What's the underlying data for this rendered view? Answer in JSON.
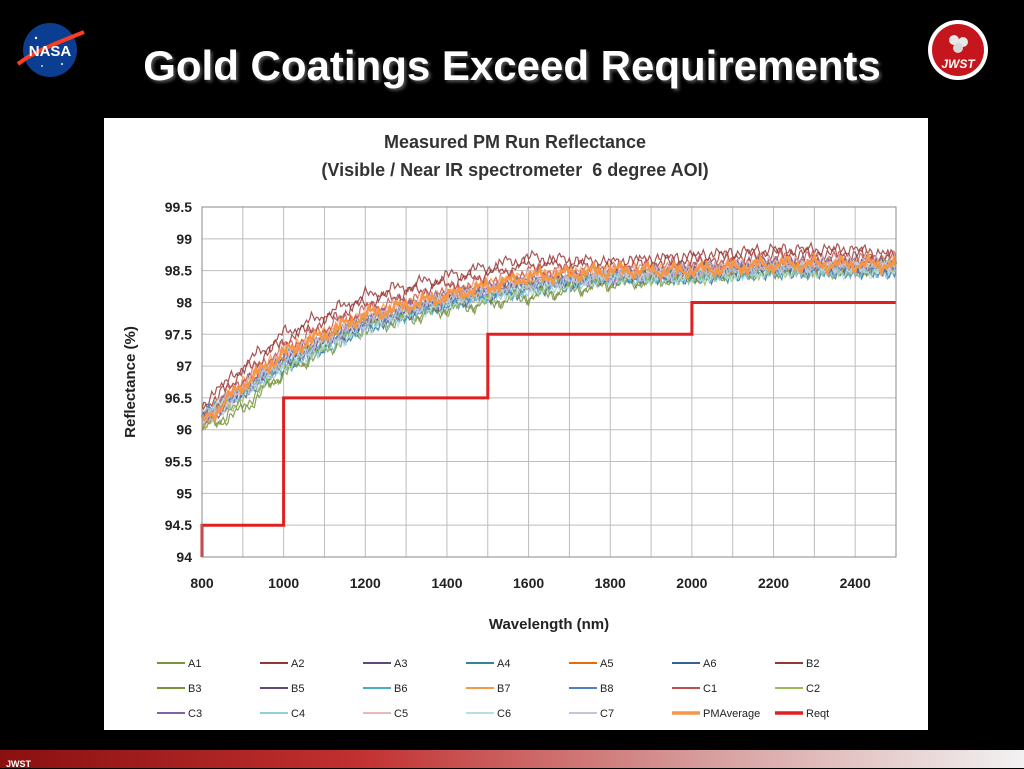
{
  "slide": {
    "title": "Gold Coatings Exceed Requirements",
    "footer": "JWST",
    "nasa_logo_text": "NASA",
    "jwst_logo_text": "JWST"
  },
  "chart_data": {
    "type": "line",
    "title": "Measured PM Run Reflectance",
    "subtitle": "(Visible / Near IR spectrometer  6 degree AOI)",
    "xlabel": "Wavelength (nm)",
    "ylabel": "Reflectance (%)",
    "xlim": [
      800,
      2500
    ],
    "ylim": [
      94,
      99.5
    ],
    "xticks": [
      800,
      1000,
      1200,
      1400,
      1600,
      1800,
      2000,
      2200,
      2400
    ],
    "xtick_labels": [
      "800",
      "1000",
      "1200",
      "1400",
      "1600",
      "1800",
      "2000",
      "2200",
      "2400"
    ],
    "yticks": [
      94,
      94.5,
      95,
      95.5,
      96,
      96.5,
      97,
      97.5,
      98,
      98.5,
      99,
      99.5
    ],
    "ytick_labels": [
      "94",
      "94.5",
      "95",
      "95.5",
      "96",
      "96.5",
      "97",
      "97.5",
      "98",
      "98.5",
      "99",
      "99.5"
    ],
    "grid": true,
    "legend_position": "bottom",
    "series": [
      {
        "name": "A1",
        "color": "#77933c",
        "x": [
          800,
          900,
          1000,
          1200,
          1400,
          1600,
          1800,
          2000,
          2200,
          2400,
          2500
        ],
        "y": [
          96.0,
          96.4,
          96.9,
          97.6,
          97.9,
          98.1,
          98.3,
          98.4,
          98.5,
          98.5,
          98.6
        ]
      },
      {
        "name": "A2",
        "color": "#943634",
        "x": [
          800,
          900,
          1000,
          1200,
          1400,
          1600,
          1800,
          2000,
          2200,
          2400,
          2500
        ],
        "y": [
          96.3,
          97.0,
          97.5,
          98.1,
          98.4,
          98.7,
          98.6,
          98.7,
          98.8,
          98.8,
          98.7
        ]
      },
      {
        "name": "A3",
        "color": "#5f497a",
        "x": [
          800,
          900,
          1000,
          1200,
          1400,
          1600,
          1800,
          2000,
          2200,
          2400,
          2500
        ],
        "y": [
          96.1,
          96.7,
          97.1,
          97.7,
          98.1,
          98.3,
          98.4,
          98.5,
          98.6,
          98.6,
          98.6
        ]
      },
      {
        "name": "A4",
        "color": "#31859c",
        "x": [
          800,
          900,
          1000,
          1200,
          1400,
          1600,
          1800,
          2000,
          2200,
          2400,
          2500
        ],
        "y": [
          96.2,
          96.6,
          97.0,
          97.7,
          98.0,
          98.3,
          98.4,
          98.4,
          98.5,
          98.5,
          98.5
        ]
      },
      {
        "name": "A5",
        "color": "#e46c0a",
        "x": [
          800,
          900,
          1000,
          1200,
          1400,
          1600,
          1800,
          2000,
          2200,
          2400,
          2500
        ],
        "y": [
          96.1,
          96.7,
          97.2,
          97.8,
          98.1,
          98.4,
          98.5,
          98.5,
          98.6,
          98.6,
          98.6
        ]
      },
      {
        "name": "A6",
        "color": "#376092",
        "x": [
          800,
          900,
          1000,
          1200,
          1400,
          1600,
          1800,
          2000,
          2200,
          2400,
          2500
        ],
        "y": [
          96.2,
          96.6,
          97.0,
          97.6,
          98.0,
          98.2,
          98.4,
          98.4,
          98.5,
          98.5,
          98.5
        ]
      },
      {
        "name": "B2",
        "color": "#953735",
        "x": [
          800,
          900,
          1000,
          1200,
          1400,
          1600,
          1800,
          2000,
          2200,
          2400,
          2500
        ],
        "y": [
          96.4,
          96.9,
          97.4,
          98.0,
          98.3,
          98.6,
          98.6,
          98.7,
          98.8,
          98.8,
          98.7
        ]
      },
      {
        "name": "B3",
        "color": "#76923c",
        "x": [
          800,
          900,
          1000,
          1200,
          1400,
          1600,
          1800,
          2000,
          2200,
          2400,
          2500
        ],
        "y": [
          96.0,
          96.3,
          96.9,
          97.6,
          97.9,
          98.1,
          98.3,
          98.4,
          98.5,
          98.5,
          98.6
        ]
      },
      {
        "name": "B5",
        "color": "#604a7b",
        "x": [
          800,
          900,
          1000,
          1200,
          1400,
          1600,
          1800,
          2000,
          2200,
          2400,
          2500
        ],
        "y": [
          96.1,
          96.6,
          97.1,
          97.7,
          98.0,
          98.3,
          98.4,
          98.5,
          98.6,
          98.6,
          98.6
        ]
      },
      {
        "name": "B6",
        "color": "#4bacc6",
        "x": [
          800,
          900,
          1000,
          1200,
          1400,
          1600,
          1800,
          2000,
          2200,
          2400,
          2500
        ],
        "y": [
          96.2,
          96.6,
          97.0,
          97.6,
          98.0,
          98.2,
          98.4,
          98.4,
          98.5,
          98.5,
          98.5
        ]
      },
      {
        "name": "B7",
        "color": "#f79646",
        "x": [
          800,
          900,
          1000,
          1200,
          1400,
          1600,
          1800,
          2000,
          2200,
          2400,
          2500
        ],
        "y": [
          96.1,
          96.7,
          97.2,
          97.8,
          98.1,
          98.4,
          98.5,
          98.5,
          98.6,
          98.6,
          98.6
        ]
      },
      {
        "name": "B8",
        "color": "#4f81bd",
        "x": [
          800,
          900,
          1000,
          1200,
          1400,
          1600,
          1800,
          2000,
          2200,
          2400,
          2500
        ],
        "y": [
          96.2,
          96.6,
          97.1,
          97.7,
          98.0,
          98.3,
          98.4,
          98.5,
          98.5,
          98.5,
          98.5
        ]
      },
      {
        "name": "C1",
        "color": "#c0504d",
        "x": [
          800,
          900,
          1000,
          1200,
          1400,
          1600,
          1800,
          2000,
          2200,
          2400,
          2500
        ],
        "y": [
          96.2,
          96.8,
          97.3,
          97.9,
          98.2,
          98.5,
          98.5,
          98.6,
          98.7,
          98.7,
          98.7
        ]
      },
      {
        "name": "C2",
        "color": "#9bbb59",
        "x": [
          800,
          900,
          1000,
          1200,
          1400,
          1600,
          1800,
          2000,
          2200,
          2400,
          2500
        ],
        "y": [
          96.1,
          96.5,
          97.0,
          97.7,
          98.0,
          98.2,
          98.4,
          98.4,
          98.5,
          98.5,
          98.6
        ]
      },
      {
        "name": "C3",
        "color": "#8064a2",
        "x": [
          800,
          900,
          1000,
          1200,
          1400,
          1600,
          1800,
          2000,
          2200,
          2400,
          2500
        ],
        "y": [
          96.1,
          96.6,
          97.1,
          97.7,
          98.1,
          98.3,
          98.4,
          98.5,
          98.6,
          98.6,
          98.6
        ]
      },
      {
        "name": "C4",
        "color": "#92cddc",
        "x": [
          800,
          900,
          1000,
          1200,
          1400,
          1600,
          1800,
          2000,
          2200,
          2400,
          2500
        ],
        "y": [
          96.2,
          96.6,
          97.0,
          97.6,
          98.0,
          98.2,
          98.4,
          98.4,
          98.5,
          98.5,
          98.5
        ]
      },
      {
        "name": "C5",
        "color": "#e6b9b8",
        "x": [
          800,
          900,
          1000,
          1200,
          1400,
          1600,
          1800,
          2000,
          2200,
          2400,
          2500
        ],
        "y": [
          96.1,
          96.7,
          97.2,
          97.8,
          98.1,
          98.4,
          98.5,
          98.5,
          98.6,
          98.6,
          98.6
        ]
      },
      {
        "name": "C6",
        "color": "#b7dee8",
        "x": [
          800,
          900,
          1000,
          1200,
          1400,
          1600,
          1800,
          2000,
          2200,
          2400,
          2500
        ],
        "y": [
          96.2,
          96.6,
          97.0,
          97.6,
          98.0,
          98.2,
          98.4,
          98.4,
          98.5,
          98.5,
          98.5
        ]
      },
      {
        "name": "C7",
        "color": "#ccc1da",
        "x": [
          800,
          900,
          1000,
          1200,
          1400,
          1600,
          1800,
          2000,
          2200,
          2400,
          2500
        ],
        "y": [
          96.1,
          96.6,
          97.1,
          97.7,
          98.1,
          98.3,
          98.4,
          98.5,
          98.6,
          98.6,
          98.6
        ]
      },
      {
        "name": "PMAverage",
        "color": "#f79646",
        "x": [
          800,
          900,
          1000,
          1200,
          1400,
          1600,
          1800,
          2000,
          2200,
          2400,
          2500
        ],
        "y": [
          96.1,
          96.7,
          97.2,
          97.8,
          98.1,
          98.4,
          98.5,
          98.5,
          98.6,
          98.6,
          98.6
        ]
      },
      {
        "name": "Reqt",
        "color": "#e02020",
        "x": [
          800,
          800,
          1000,
          1000,
          1500,
          1500,
          2000,
          2000,
          2500
        ],
        "y": [
          94.0,
          94.5,
          94.5,
          96.5,
          96.5,
          97.5,
          97.5,
          98.0,
          98.0
        ]
      }
    ]
  }
}
